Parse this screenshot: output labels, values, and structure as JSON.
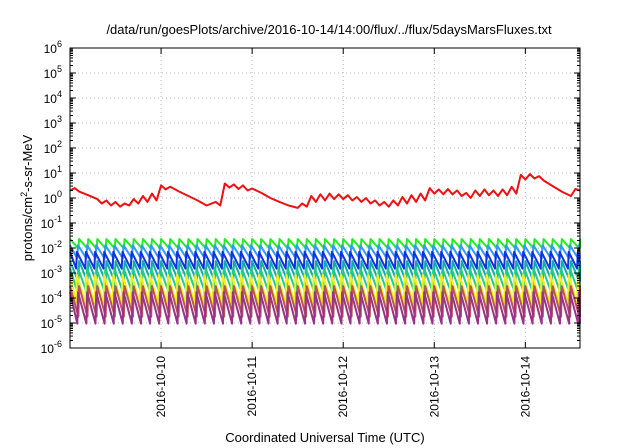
{
  "chart_data": {
    "type": "line",
    "title": "/data/run/goesPlots/archive/2016-10-14/14:00/flux/../flux/5daysMarsFluxes.txt",
    "xlabel": "Coordinated Universal Time (UTC)",
    "ylabel_main": "protons/cm",
    "ylabel_sup": "2",
    "ylabel_rest": "-s-sr-MeV",
    "yscale": "log",
    "ylim_exp": [
      -6,
      6
    ],
    "y_tick_exponents": [
      -6,
      -5,
      -4,
      -3,
      -2,
      -1,
      0,
      1,
      2,
      3,
      4,
      5,
      6
    ],
    "y_tick_base": "10",
    "x_range_days": [
      9.0,
      14.6
    ],
    "x_ticks": [
      {
        "label": "2016-10-10",
        "day": 10
      },
      {
        "label": "2016-10-11",
        "day": 11
      },
      {
        "label": "2016-10-12",
        "day": 12
      },
      {
        "label": "2016-10-13",
        "day": 13
      },
      {
        "label": "2016-10-14",
        "day": 14
      }
    ],
    "grid": true,
    "sawtooth_period_days": 0.1,
    "series": [
      {
        "color": "#ee1111",
        "width": 2,
        "x": [
          9.0,
          9.05,
          9.1,
          9.2,
          9.3,
          9.35,
          9.4,
          9.45,
          9.5,
          9.55,
          9.6,
          9.65,
          9.7,
          9.75,
          9.8,
          9.85,
          9.9,
          9.95,
          10.0,
          10.05,
          10.1,
          10.2,
          10.3,
          10.4,
          10.5,
          10.6,
          10.65,
          10.7,
          10.75,
          10.8,
          10.85,
          10.9,
          10.95,
          11.0,
          11.1,
          11.2,
          11.3,
          11.4,
          11.5,
          11.55,
          11.6,
          11.65,
          11.7,
          11.75,
          11.8,
          11.85,
          11.9,
          11.95,
          12.0,
          12.05,
          12.1,
          12.15,
          12.2,
          12.25,
          12.3,
          12.35,
          12.4,
          12.45,
          12.5,
          12.55,
          12.6,
          12.65,
          12.7,
          12.75,
          12.8,
          12.85,
          12.9,
          12.95,
          13.0,
          13.05,
          13.1,
          13.15,
          13.2,
          13.25,
          13.3,
          13.35,
          13.4,
          13.45,
          13.5,
          13.55,
          13.6,
          13.65,
          13.7,
          13.75,
          13.8,
          13.85,
          13.9,
          13.95,
          14.0,
          14.05,
          14.1,
          14.15,
          14.2,
          14.3,
          14.4,
          14.5,
          14.55,
          14.6
        ],
        "y": [
          2.0,
          2.5,
          1.8,
          1.3,
          0.9,
          0.6,
          0.8,
          0.5,
          0.7,
          0.45,
          0.6,
          0.5,
          0.9,
          0.6,
          1.2,
          0.7,
          1.5,
          0.8,
          3.2,
          2.2,
          2.8,
          1.8,
          1.2,
          0.8,
          0.5,
          0.7,
          0.5,
          3.8,
          2.6,
          3.5,
          2.3,
          3.2,
          2.0,
          2.4,
          1.6,
          1.0,
          0.7,
          0.5,
          0.4,
          0.6,
          0.45,
          1.2,
          0.7,
          1.4,
          0.8,
          1.5,
          0.9,
          1.4,
          0.9,
          1.3,
          0.8,
          1.1,
          0.7,
          1.0,
          0.6,
          0.8,
          0.5,
          0.7,
          0.45,
          0.8,
          0.5,
          1.1,
          0.6,
          1.3,
          0.7,
          1.5,
          0.8,
          2.5,
          1.5,
          2.2,
          1.4,
          2.3,
          1.4,
          2.0,
          1.2,
          1.6,
          1.0,
          2.0,
          1.2,
          2.2,
          1.3,
          2.0,
          1.2,
          2.2,
          1.3,
          2.8,
          1.5,
          8.5,
          5.5,
          9.0,
          6.0,
          7.5,
          5.0,
          3.0,
          1.8,
          1.2,
          2.3,
          2.0
        ]
      },
      {
        "color": "#22ee22",
        "width": 2,
        "base": 0.023,
        "min": 0.0095
      },
      {
        "color": "#3399ff",
        "width": 2,
        "base": 0.013,
        "min": 0.0038
      },
      {
        "color": "#1133dd",
        "width": 2,
        "base": 0.007,
        "min": 0.0015
      },
      {
        "color": "#11aaaa",
        "width": 2,
        "base": 0.003,
        "min": 0.00045
      },
      {
        "color": "#22cc88",
        "width": 2,
        "base": 0.0016,
        "min": 0.00018
      },
      {
        "color": "#eeee22",
        "width": 2,
        "base": 0.00085,
        "min": 6e-05
      },
      {
        "color": "#bb5555",
        "width": 2,
        "base": 0.0003,
        "min": 1.8e-05
      },
      {
        "color": "#993388",
        "width": 2,
        "base": 0.00017,
        "min": 9.5e-06
      }
    ]
  }
}
